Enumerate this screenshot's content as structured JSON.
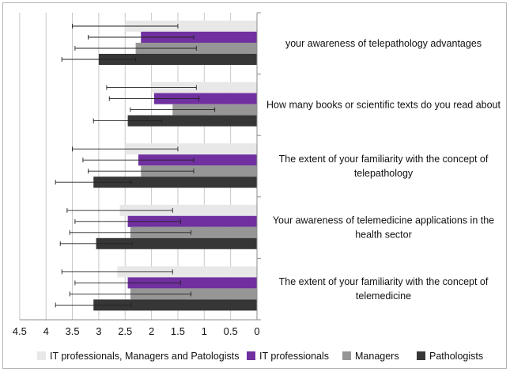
{
  "chart_data": {
    "type": "bar",
    "orientation": "horizontal",
    "x_reversed": true,
    "xlim": [
      0,
      4.5
    ],
    "x_ticks": [
      "4.5",
      "4",
      "3.5",
      "3",
      "2.5",
      "2",
      "1.5",
      "1",
      "0.5",
      "0"
    ],
    "grid": "vertical",
    "legend_position": "bottom",
    "title": "",
    "xlabel": "",
    "ylabel": "",
    "categories": [
      {
        "lines": [
          "your awareness of telepathology advantages"
        ]
      },
      {
        "lines": [
          "How many books or scientific texts do you read about"
        ]
      },
      {
        "lines": [
          "The extent of your familiarity with the concept of",
          "telepathology"
        ]
      },
      {
        "lines": [
          "Your awareness of telemedicine applications in the",
          "health sector"
        ]
      },
      {
        "lines": [
          "The extent of your familiarity with the concept of",
          "telemedicine"
        ]
      }
    ],
    "series": [
      {
        "name": "IT professionals, Managers and Patologists",
        "color": "#e8e8e8",
        "values": [
          2.5,
          2.0,
          2.5,
          2.6,
          2.65
        ],
        "error": [
          1.0,
          0.85,
          1.0,
          1.0,
          1.05
        ]
      },
      {
        "name": "IT professionals",
        "color": "#7030a0",
        "values": [
          2.2,
          1.95,
          2.25,
          2.45,
          2.45
        ],
        "error": [
          1.0,
          0.85,
          1.05,
          1.0,
          1.0
        ]
      },
      {
        "name": "Managers",
        "color": "#969696",
        "values": [
          2.3,
          1.6,
          2.2,
          2.4,
          2.4
        ],
        "error": [
          1.15,
          0.8,
          1.0,
          1.15,
          1.15
        ]
      },
      {
        "name": "Pathologists",
        "color": "#363636",
        "values": [
          3.0,
          2.45,
          3.1,
          3.05,
          3.1
        ],
        "error": [
          0.7,
          0.65,
          0.72,
          0.68,
          0.72
        ]
      }
    ]
  }
}
